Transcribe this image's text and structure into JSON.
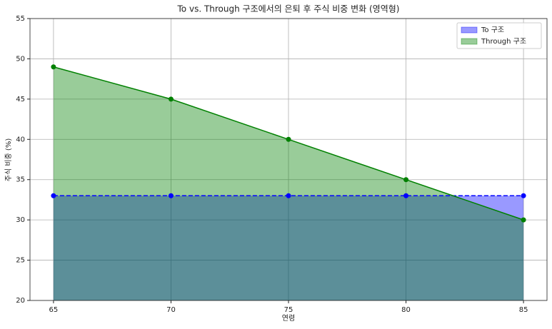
{
  "chart_data": {
    "type": "area",
    "title": "To vs. Through 구조에서의 은퇴 후 주식 비중 변화 (영역형)",
    "x_label": "연령",
    "y_label": "주식 비중 (%)",
    "x": [
      65,
      70,
      75,
      80,
      85
    ],
    "series": [
      {
        "name": "To 구조",
        "color": "#0000ff",
        "line_style": "dashed",
        "values": [
          33,
          33,
          33,
          33,
          33
        ]
      },
      {
        "name": "Through 구조",
        "color": "#008000",
        "line_style": "solid",
        "values": [
          49,
          45,
          40,
          35,
          30
        ]
      }
    ],
    "xlim": [
      64,
      86
    ],
    "xticks": [
      65,
      70,
      75,
      80,
      85
    ],
    "ylim": [
      20,
      55
    ],
    "yticks": [
      20,
      25,
      30,
      35,
      40,
      45,
      50,
      55
    ],
    "grid": true,
    "legend": "upper-right"
  }
}
